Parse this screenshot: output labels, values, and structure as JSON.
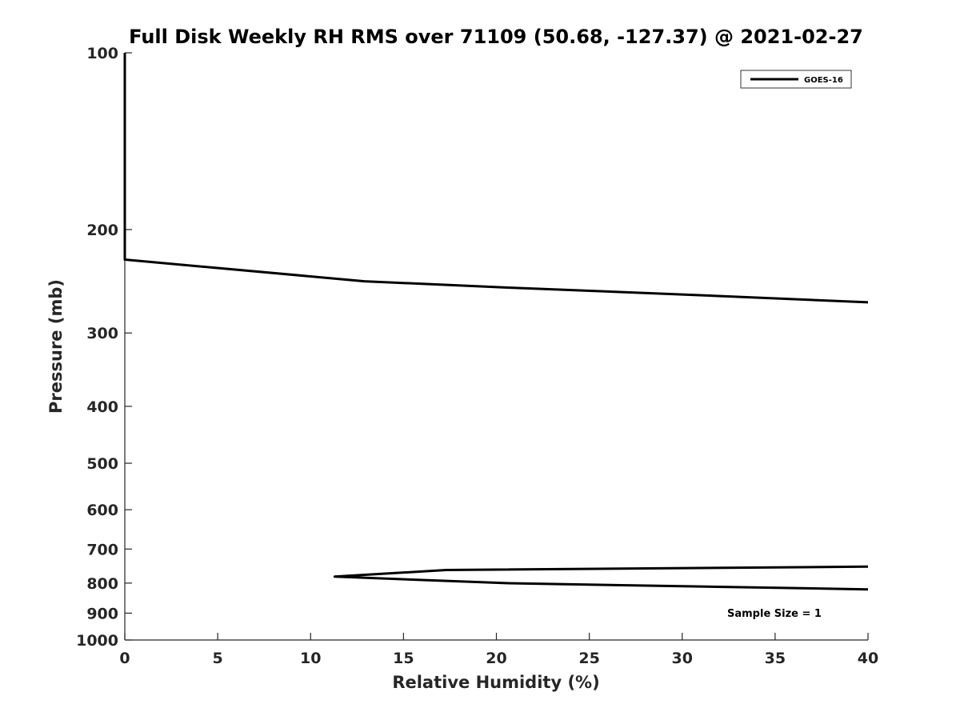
{
  "chart_data": {
    "type": "line",
    "title": "Full Disk Weekly RH RMS over 71109 (50.68, -127.37) @ 2021-02-27",
    "xlabel": "Relative Humidity (%)",
    "ylabel": "Pressure (mb)",
    "xlim": [
      0,
      40
    ],
    "ylim": [
      100,
      1000
    ],
    "yscale": "log",
    "y_reversed": true,
    "grid": false,
    "legend_position": "top-right",
    "x_ticks": [
      "0",
      "5",
      "10",
      "15",
      "20",
      "25",
      "30",
      "35",
      "40"
    ],
    "y_ticks": [
      "100",
      "200",
      "300",
      "400",
      "500",
      "600",
      "700",
      "800",
      "900",
      "1000"
    ],
    "series": [
      {
        "name": "GOES-16",
        "color": "#000000",
        "segments": [
          [
            [
              0,
              100
            ],
            [
              0,
              150
            ],
            [
              0,
              200
            ],
            [
              0,
              225
            ],
            [
              12.9,
              245
            ],
            [
              20.5,
              251
            ],
            [
              30,
              258
            ],
            [
              40,
              266
            ]
          ],
          [
            [
              40,
              750
            ],
            [
              17.3,
              760
            ],
            [
              11.3,
              780
            ],
            [
              20.5,
              800
            ],
            [
              30,
              810
            ],
            [
              40,
              820
            ]
          ]
        ]
      }
    ],
    "annotation": "Sample Size = 1"
  }
}
